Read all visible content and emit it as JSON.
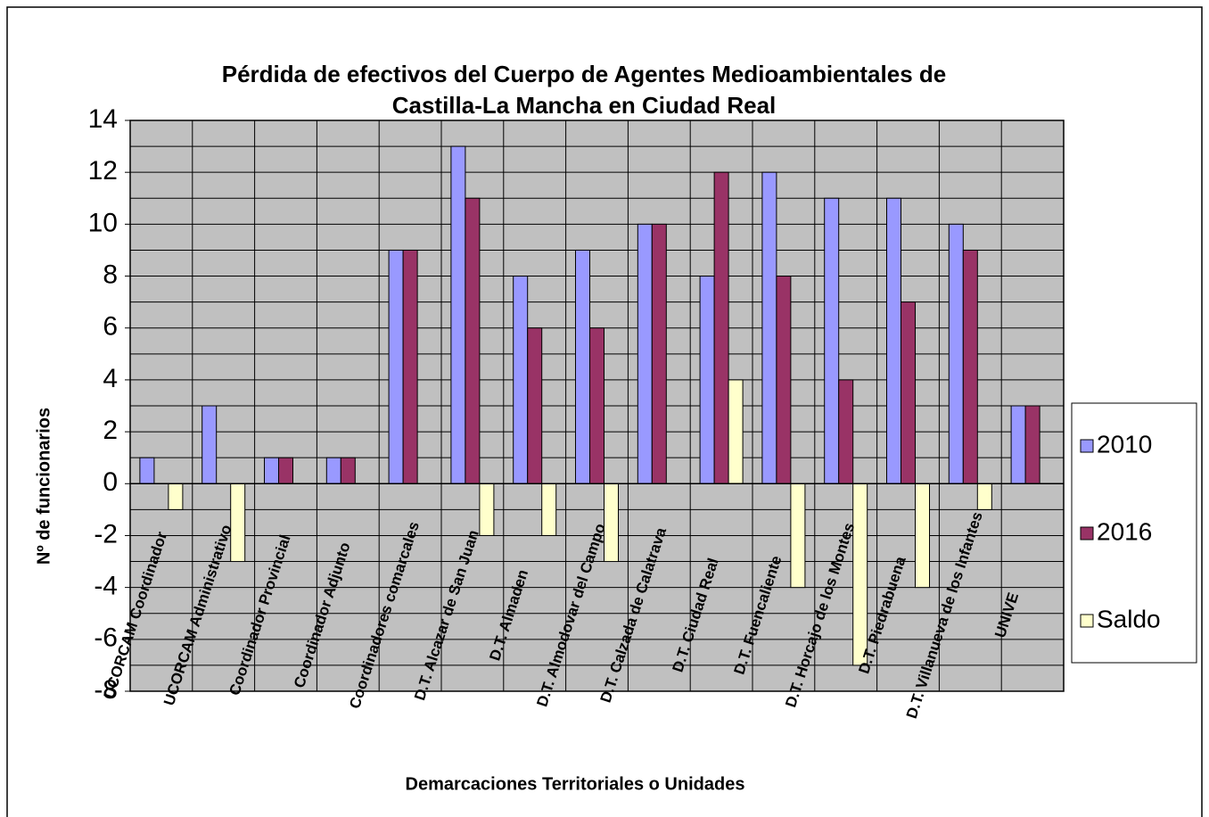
{
  "chart_data": {
    "type": "bar",
    "title": [
      "Pérdida de efectivos del Cuerpo de Agentes Medioambientales de",
      "Castilla-La Mancha en Ciudad Real"
    ],
    "x_label": "Demarcaciones Territoriales o Unidades",
    "y_label": "Nº de funcionarios",
    "categories": [
      "UCORCAM Coordinador",
      "UCORCAM Administrativo",
      "Coordinador Provincial",
      "Coordinador Adjunto",
      "Coordinadores comarcales",
      "D.T. Alcazar de San Juan",
      "D.T. Almaden",
      "D.T. Almodovar del Campo",
      "D.T. Calzada de Calatrava",
      "D.T. Ciudad Real",
      "D.T. Fuencaliente",
      "D.T. Horcajo de los Montes",
      "D.T. Piedrabuena",
      "D.T. Villanueva de los Infantes",
      "UNIVE"
    ],
    "series": [
      {
        "name": "2010",
        "color": "#9999ff",
        "values": [
          1,
          3,
          1,
          1,
          9,
          13,
          8,
          9,
          10,
          8,
          12,
          11,
          11,
          10,
          3
        ]
      },
      {
        "name": "2016",
        "color": "#993366",
        "values": [
          0,
          0,
          1,
          1,
          9,
          11,
          6,
          6,
          10,
          12,
          8,
          4,
          7,
          9,
          3
        ]
      },
      {
        "name": "Saldo",
        "color": "#ffffcc",
        "values": [
          -1,
          -3,
          0,
          0,
          0,
          -2,
          -2,
          -3,
          0,
          4,
          -4,
          -7,
          -4,
          -1,
          0
        ]
      }
    ],
    "ylim": [
      -8,
      14
    ],
    "yticks": [
      -8,
      -6,
      -4,
      -2,
      0,
      2,
      4,
      6,
      8,
      10,
      12,
      14
    ],
    "yticks_minor": [
      -7,
      -5,
      -3,
      -1,
      1,
      3,
      5,
      7,
      9,
      11,
      13
    ],
    "grid": true,
    "plot_background": "#c0c0c0",
    "legend": "right"
  }
}
